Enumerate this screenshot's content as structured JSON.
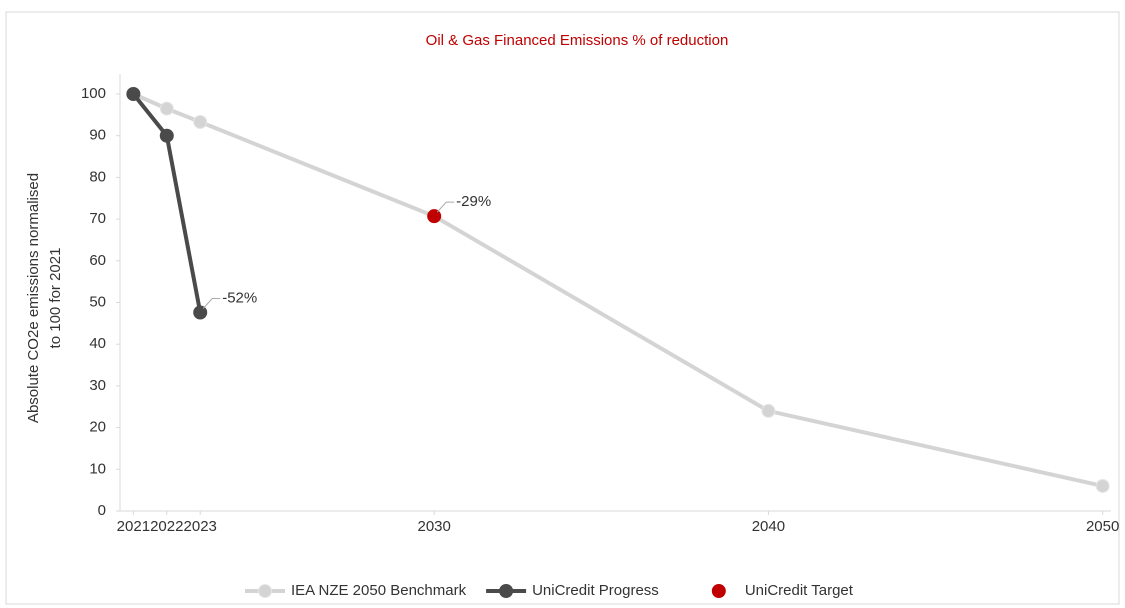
{
  "chart_data": {
    "type": "line",
    "title": "Oil & Gas Financed Emissions % of reduction",
    "y_label": [
      "Absolute CO2e emissions normalised",
      "to 100 for 2021"
    ],
    "xlim": [
      2020.6,
      2050.25
    ],
    "ylim": [
      0,
      100
    ],
    "xticks": [
      2021,
      2022,
      2023,
      2030,
      2040,
      2050
    ],
    "yticks": [
      0,
      10,
      20,
      30,
      40,
      50,
      60,
      70,
      80,
      90,
      100
    ],
    "legend": "bottom",
    "series": [
      {
        "name": "IEA NZE 2050 Benchmark",
        "color": "#d4d4d4",
        "mode": "line",
        "x": [
          2021,
          2022,
          2023,
          2030,
          2040,
          2050
        ],
        "values": [
          100,
          96.5,
          93.3,
          70.7,
          24,
          6
        ]
      },
      {
        "name": "UniCredit Progress",
        "color": "#4a4a4a",
        "mode": "line",
        "x": [
          2021,
          2022,
          2023
        ],
        "values": [
          100,
          90,
          47.6
        ]
      },
      {
        "name": "UniCredit Target",
        "color": "#c00000",
        "mode": "markers",
        "x": [
          2030
        ],
        "values": [
          70.7
        ]
      }
    ],
    "annotations": [
      {
        "text": "-52%",
        "x": 2023,
        "y": 47.6
      },
      {
        "text": "-29%",
        "x": 2030,
        "y": 70.7
      }
    ]
  }
}
